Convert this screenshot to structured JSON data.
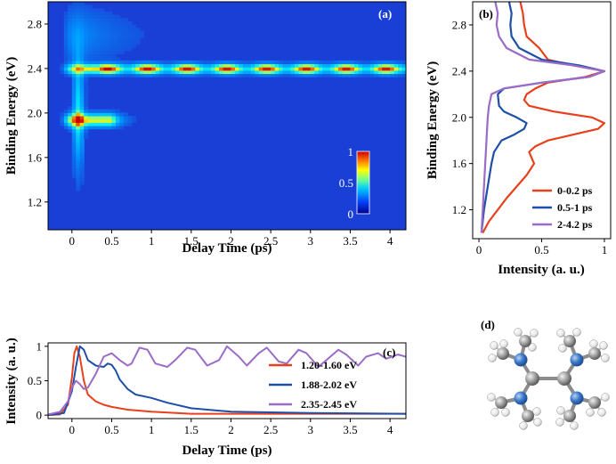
{
  "chart_data": [
    {
      "id": "a",
      "type": "heatmap",
      "panel_label": "(a)",
      "xlabel": "Delay Time (ps)",
      "ylabel": "Binding Energy (eV)",
      "xlim": [
        -0.3,
        4.2
      ],
      "ylim": [
        0.95,
        3.0
      ],
      "xticks": [
        "0",
        "0.5",
        "1",
        "1.5",
        "2",
        "2.5",
        "3",
        "3.5",
        "4"
      ],
      "xtick_values": [
        0,
        0.5,
        1,
        1.5,
        2,
        2.5,
        3,
        3.5,
        4
      ],
      "yticks": [
        "1.2",
        "1.6",
        "2.0",
        "2.4",
        "2.8"
      ],
      "ytick_values": [
        1.2,
        1.6,
        2.0,
        2.4,
        2.8
      ],
      "colorbar": {
        "min": 0,
        "max": 1,
        "ticks": [
          "0",
          "0.5",
          "1"
        ],
        "tick_values": [
          0,
          0.5,
          1
        ]
      },
      "features": [
        {
          "name": "1.9 eV band",
          "energy": 1.94,
          "time_range": [
            0.0,
            0.6
          ]
        },
        {
          "name": "2.4 eV band",
          "energy": 2.4,
          "time_range": [
            -0.1,
            4.2
          ],
          "oscillation_period_ps": 0.5
        }
      ]
    },
    {
      "id": "b",
      "type": "line",
      "panel_label": "(b)",
      "xlabel": "Intensity (a. u.)",
      "ylabel": "Binding Energy (eV)",
      "xlim": [
        -0.05,
        1.05
      ],
      "ylim": [
        0.95,
        3.0
      ],
      "xticks": [
        "0",
        "0.5",
        "1"
      ],
      "xtick_values": [
        0,
        0.5,
        1
      ],
      "yticks": [
        "1.2",
        "1.6",
        "2.0",
        "2.4",
        "2.8"
      ],
      "ytick_values": [
        1.2,
        1.6,
        2.0,
        2.4,
        2.8
      ],
      "legend_position": "bottom-right",
      "series": [
        {
          "name": "0-0.2 ps",
          "color": "#e8401c",
          "energy": [
            1.0,
            1.1,
            1.2,
            1.3,
            1.4,
            1.5,
            1.6,
            1.7,
            1.75,
            1.8,
            1.85,
            1.9,
            1.95,
            2.0,
            2.05,
            2.1,
            2.15,
            2.2,
            2.25,
            2.3,
            2.35,
            2.4,
            2.45,
            2.5,
            2.6,
            2.7,
            2.8,
            2.9,
            3.0
          ],
          "intensity": [
            0.03,
            0.08,
            0.15,
            0.22,
            0.3,
            0.38,
            0.44,
            0.4,
            0.45,
            0.55,
            0.75,
            0.95,
            1.0,
            0.9,
            0.6,
            0.4,
            0.36,
            0.38,
            0.45,
            0.55,
            0.85,
            1.0,
            0.75,
            0.55,
            0.48,
            0.38,
            0.36,
            0.35,
            0.33
          ]
        },
        {
          "name": "0.5-1 ps",
          "color": "#1e4fa8",
          "energy": [
            1.0,
            1.2,
            1.4,
            1.6,
            1.7,
            1.8,
            1.85,
            1.9,
            1.95,
            2.0,
            2.05,
            2.1,
            2.2,
            2.25,
            2.3,
            2.35,
            2.4,
            2.45,
            2.5,
            2.6,
            2.7,
            2.8,
            2.9,
            3.0
          ],
          "intensity": [
            0.02,
            0.04,
            0.07,
            0.1,
            0.12,
            0.18,
            0.28,
            0.36,
            0.38,
            0.3,
            0.2,
            0.16,
            0.15,
            0.2,
            0.5,
            0.88,
            1.0,
            0.8,
            0.5,
            0.32,
            0.26,
            0.25,
            0.26,
            0.24
          ]
        },
        {
          "name": "2-4.2 ps",
          "color": "#9b6bc8",
          "energy": [
            1.0,
            1.2,
            1.4,
            1.6,
            1.8,
            2.0,
            2.1,
            2.2,
            2.25,
            2.3,
            2.35,
            2.4,
            2.45,
            2.5,
            2.6,
            2.7,
            2.8,
            2.9,
            3.0
          ],
          "intensity": [
            0.02,
            0.03,
            0.04,
            0.05,
            0.06,
            0.07,
            0.08,
            0.1,
            0.2,
            0.5,
            0.88,
            1.0,
            0.75,
            0.4,
            0.22,
            0.16,
            0.14,
            0.15,
            0.13
          ]
        }
      ]
    },
    {
      "id": "c",
      "type": "line",
      "panel_label": "(c)",
      "xlabel": "Delay Time (ps)",
      "ylabel": "Intensity (a. u.)",
      "xlim": [
        -0.3,
        4.2
      ],
      "ylim": [
        -0.05,
        1.05
      ],
      "xticks": [
        "0",
        "0.5",
        "1",
        "1.5",
        "2",
        "2.5",
        "3",
        "3.5",
        "4"
      ],
      "xtick_values": [
        0,
        0.5,
        1,
        1.5,
        2,
        2.5,
        3,
        3.5,
        4
      ],
      "yticks": [
        "0",
        "0.5",
        "1"
      ],
      "ytick_values": [
        0,
        0.5,
        1
      ],
      "legend_position": "right",
      "series": [
        {
          "name": "1.20-1.60 eV",
          "color": "#e8401c",
          "x": [
            -0.3,
            -0.15,
            -0.05,
            0.0,
            0.03,
            0.06,
            0.1,
            0.15,
            0.2,
            0.3,
            0.4,
            0.5,
            0.7,
            1.0,
            1.5,
            2.0,
            3.0,
            4.2
          ],
          "y": [
            0.0,
            0.01,
            0.15,
            0.55,
            0.9,
            1.0,
            0.85,
            0.5,
            0.3,
            0.2,
            0.15,
            0.12,
            0.08,
            0.05,
            0.02,
            0.02,
            0.02,
            0.02
          ]
        },
        {
          "name": "1.88-2.02 eV",
          "color": "#1e4fa8",
          "x": [
            -0.3,
            -0.1,
            0.0,
            0.05,
            0.1,
            0.15,
            0.2,
            0.3,
            0.4,
            0.45,
            0.5,
            0.55,
            0.6,
            0.7,
            0.8,
            1.0,
            1.2,
            1.5,
            1.8,
            2.0,
            2.5,
            3.0,
            4.2
          ],
          "y": [
            0.0,
            0.03,
            0.35,
            0.7,
            1.0,
            0.95,
            0.8,
            0.72,
            0.7,
            0.75,
            0.73,
            0.65,
            0.52,
            0.38,
            0.3,
            0.25,
            0.18,
            0.1,
            0.07,
            0.05,
            0.04,
            0.03,
            0.02
          ]
        },
        {
          "name": "2.35-2.45 eV",
          "color": "#9b6bc8",
          "x": [
            -0.3,
            -0.15,
            -0.05,
            0.0,
            0.05,
            0.1,
            0.15,
            0.2,
            0.3,
            0.4,
            0.5,
            0.6,
            0.7,
            0.75,
            0.85,
            0.95,
            1.05,
            1.2,
            1.3,
            1.45,
            1.55,
            1.7,
            1.85,
            1.95,
            2.1,
            2.2,
            2.35,
            2.45,
            2.6,
            2.7,
            2.85,
            2.95,
            3.1,
            3.2,
            3.35,
            3.45,
            3.6,
            3.7,
            3.85,
            3.95,
            4.1,
            4.2
          ],
          "y": [
            0.01,
            0.05,
            0.2,
            0.4,
            0.5,
            0.45,
            0.38,
            0.4,
            0.6,
            0.85,
            0.9,
            0.8,
            0.72,
            0.75,
            0.98,
            0.95,
            0.75,
            0.7,
            0.8,
            0.98,
            0.95,
            0.72,
            0.8,
            1.0,
            0.85,
            0.72,
            0.9,
            0.98,
            0.78,
            0.75,
            0.95,
            0.9,
            0.7,
            0.8,
            0.95,
            0.88,
            0.72,
            0.85,
            0.9,
            0.82,
            0.88,
            0.85
          ]
        }
      ]
    }
  ],
  "molecule": {
    "panel_label": "(d)"
  }
}
